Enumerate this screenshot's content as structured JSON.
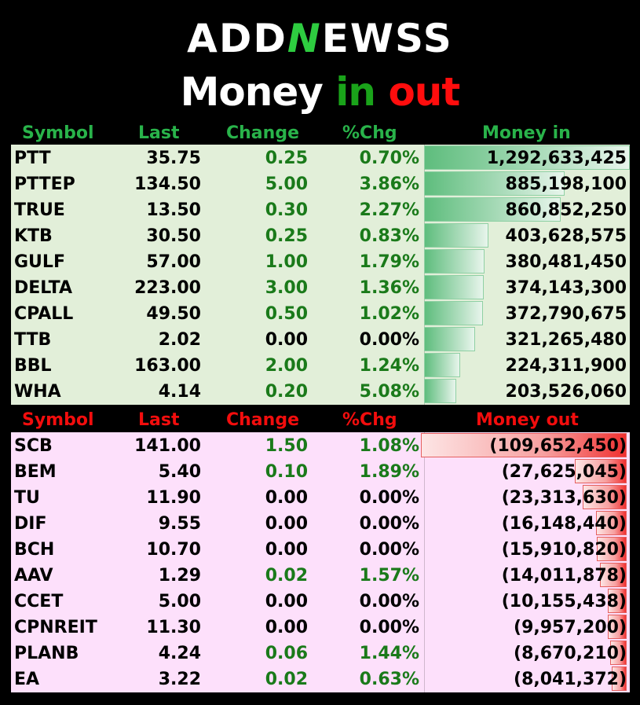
{
  "brand": {
    "prefix": "ADD",
    "n": "N",
    "suffix": "EWSS"
  },
  "title": {
    "word1": "Money ",
    "word2": "in ",
    "word3": "out"
  },
  "money_in": {
    "headers": {
      "symbol": "Symbol",
      "last": "Last",
      "change": "Change",
      "pct": "%Chg",
      "money": "Money in"
    },
    "rows": [
      {
        "symbol": "PTT",
        "last": "35.75",
        "change": "0.25",
        "pct": "0.70%",
        "money": "1,292,633,425",
        "level": 1.0
      },
      {
        "symbol": "PTTEP",
        "last": "134.50",
        "change": "5.00",
        "pct": "3.86%",
        "money": "885,198,100",
        "level": 0.685
      },
      {
        "symbol": "TRUE",
        "last": "13.50",
        "change": "0.30",
        "pct": "2.27%",
        "money": "860,852,250",
        "level": 0.666
      },
      {
        "symbol": "KTB",
        "last": "30.50",
        "change": "0.25",
        "pct": "0.83%",
        "money": "403,628,575",
        "level": 0.312
      },
      {
        "symbol": "GULF",
        "last": "57.00",
        "change": "1.00",
        "pct": "1.79%",
        "money": "380,481,450",
        "level": 0.294
      },
      {
        "symbol": "DELTA",
        "last": "223.00",
        "change": "3.00",
        "pct": "1.36%",
        "money": "374,143,300",
        "level": 0.289
      },
      {
        "symbol": "CPALL",
        "last": "49.50",
        "change": "0.50",
        "pct": "1.02%",
        "money": "372,790,675",
        "level": 0.288
      },
      {
        "symbol": "TTB",
        "last": "2.02",
        "change": "0.00",
        "pct": "0.00%",
        "money": "321,265,480",
        "level": 0.249
      },
      {
        "symbol": "BBL",
        "last": "163.00",
        "change": "2.00",
        "pct": "1.24%",
        "money": "224,311,900",
        "level": 0.174
      },
      {
        "symbol": "WHA",
        "last": "4.14",
        "change": "0.20",
        "pct": "5.08%",
        "money": "203,526,060",
        "level": 0.157
      }
    ]
  },
  "money_out": {
    "headers": {
      "symbol": "Symbol",
      "last": "Last",
      "change": "Change",
      "pct": "%Chg",
      "money": "Money out"
    },
    "rows": [
      {
        "symbol": "SCB",
        "last": "141.00",
        "change": "1.50",
        "pct": "1.08%",
        "money": "(109,652,450)",
        "level": 1.0
      },
      {
        "symbol": "BEM",
        "last": "5.40",
        "change": "0.10",
        "pct": "1.89%",
        "money": "(27,625,045)",
        "level": 0.252
      },
      {
        "symbol": "TU",
        "last": "11.90",
        "change": "0.00",
        "pct": "0.00%",
        "money": "(23,313,630)",
        "level": 0.213
      },
      {
        "symbol": "DIF",
        "last": "9.55",
        "change": "0.00",
        "pct": "0.00%",
        "money": "(16,148,440)",
        "level": 0.147
      },
      {
        "symbol": "BCH",
        "last": "10.70",
        "change": "0.00",
        "pct": "0.00%",
        "money": "(15,910,820)",
        "level": 0.145
      },
      {
        "symbol": "AAV",
        "last": "1.29",
        "change": "0.02",
        "pct": "1.57%",
        "money": "(14,011,878)",
        "level": 0.128
      },
      {
        "symbol": "CCET",
        "last": "5.00",
        "change": "0.00",
        "pct": "0.00%",
        "money": "(10,155,438)",
        "level": 0.093
      },
      {
        "symbol": "CPNREIT",
        "last": "11.30",
        "change": "0.00",
        "pct": "0.00%",
        "money": "(9,957,200)",
        "level": 0.091
      },
      {
        "symbol": "PLANB",
        "last": "4.24",
        "change": "0.06",
        "pct": "1.44%",
        "money": "(8,670,210)",
        "level": 0.079
      },
      {
        "symbol": "EA",
        "last": "3.22",
        "change": "0.02",
        "pct": "0.63%",
        "money": "(8,041,372)",
        "level": 0.073
      }
    ]
  },
  "colors": {
    "in_header": "#29b34a",
    "out_header": "#f20d0d",
    "in_bg": "#e2efd9",
    "out_bg": "#fde0fb",
    "change_green": "#1a7a1a"
  }
}
